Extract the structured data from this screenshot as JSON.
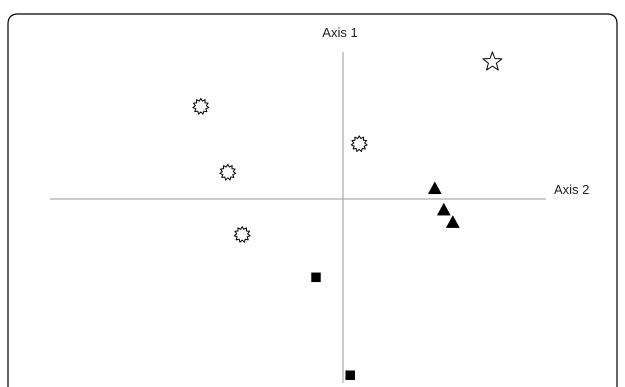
{
  "chart_data": {
    "type": "scatter",
    "title": "",
    "xlabel": "Axis 2",
    "ylabel": "Axis 1",
    "xlim": [
      -1.0,
      1.0
    ],
    "ylim": [
      -1.0,
      1.0
    ],
    "grid": false,
    "legend": "none",
    "colors": {
      "marker": "#000000",
      "axis": "#9a9a9a",
      "frame": "#000000",
      "background": "#ffffff"
    },
    "series": [
      {
        "marker": "star-outline",
        "points": [
          {
            "x": 0.83,
            "y": 0.77
          }
        ]
      },
      {
        "marker": "burst-outline",
        "points": [
          {
            "x": -0.79,
            "y": 0.52
          },
          {
            "x": -0.64,
            "y": 0.15
          },
          {
            "x": 0.09,
            "y": 0.31
          },
          {
            "x": -0.56,
            "y": -0.2
          }
        ]
      },
      {
        "marker": "triangle-filled",
        "points": [
          {
            "x": 0.51,
            "y": 0.06
          },
          {
            "x": 0.56,
            "y": -0.06
          },
          {
            "x": 0.61,
            "y": -0.13
          }
        ]
      },
      {
        "marker": "square-filled",
        "points": [
          {
            "x": -0.15,
            "y": -0.44
          },
          {
            "x": 0.04,
            "y": -0.99
          }
        ]
      }
    ]
  }
}
